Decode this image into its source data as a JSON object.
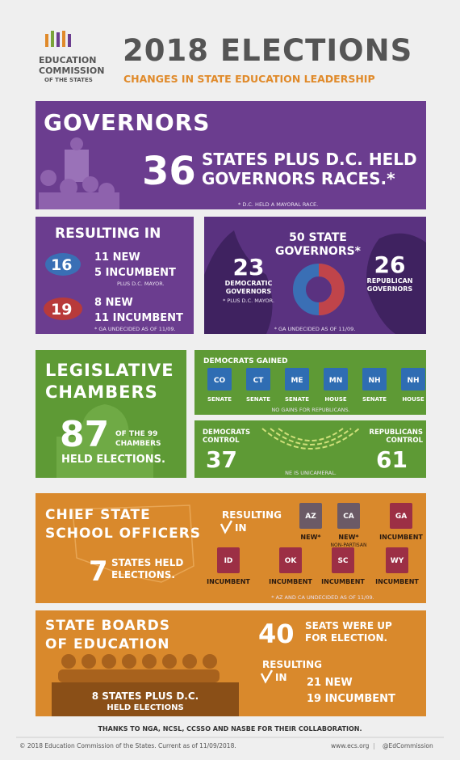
{
  "header": {
    "logo_lines": [
      "EDUCATION",
      "COMMISSION",
      "OF THE STATES"
    ],
    "title": "2018 ELECTIONS",
    "subtitle": "CHANGES IN STATE EDUCATION LEADERSHIP"
  },
  "governors": {
    "heading": "GOVERNORS",
    "count": 36,
    "text_lines": [
      "STATES PLUS D.C. HELD",
      "GOVERNORS RACES.*"
    ],
    "note": "* D.C. HELD A MAYORAL RACE."
  },
  "results": {
    "heading": "RESULTING IN",
    "democrats": {
      "total": 16,
      "lines": [
        "11 NEW",
        "5 INCUMBENT"
      ],
      "note": "PLUS D.C. MAYOR."
    },
    "republicans": {
      "total": 19,
      "lines": [
        "8 NEW",
        "11 INCUMBENT"
      ],
      "note": "* GA UNDECIDED AS OF 11/09."
    }
  },
  "state_governors": {
    "heading_lines": [
      "50 STATE",
      "GOVERNORS*"
    ],
    "democratic": {
      "count": 23,
      "label_lines": [
        "DEMOCRATIC",
        "GOVERNORS"
      ],
      "note": "* PLUS D.C. MAYOR."
    },
    "republican": {
      "count": 26,
      "label_lines": [
        "REPUBLICAN",
        "GOVERNORS"
      ]
    },
    "note": "* GA UNDECIDED AS OF 11/09."
  },
  "legislative": {
    "heading_lines": [
      "LEGISLATIVE",
      "CHAMBERS"
    ],
    "count": 87,
    "text_lines": [
      "OF THE 99",
      "CHAMBERS"
    ],
    "footer": "HELD ELECTIONS."
  },
  "democrats_gained": {
    "heading": "DEMOCRATS GAINED",
    "states": [
      {
        "state": "CO",
        "chamber": "SENATE"
      },
      {
        "state": "CT",
        "chamber": "SENATE"
      },
      {
        "state": "ME",
        "chamber": "SENATE"
      },
      {
        "state": "MN",
        "chamber": "HOUSE"
      },
      {
        "state": "NH",
        "chamber": "SENATE"
      },
      {
        "state": "NH",
        "chamber": "HOUSE"
      }
    ],
    "note": "NO GAINS FOR REPUBLICANS."
  },
  "control": {
    "democrats": {
      "label_lines": [
        "DEMOCRATS",
        "CONTROL"
      ],
      "count": 37
    },
    "republicans": {
      "label_lines": [
        "REPUBLICANS",
        "CONTROL"
      ],
      "count": 61
    },
    "note": "NE IS UNICAMERAL."
  },
  "chief_officers": {
    "heading_lines": [
      "CHIEF STATE",
      "SCHOOL OFFICERS"
    ],
    "count": 7,
    "text_lines": [
      "STATES HELD",
      "ELECTIONS."
    ],
    "resulting_lines": [
      "RESULTING",
      "IN"
    ],
    "states": [
      {
        "state": "AZ",
        "result": "NEW*"
      },
      {
        "state": "CA",
        "result": "NEW*",
        "note": "NON-PARTISAN"
      },
      {
        "state": "GA",
        "result": "INCUMBENT"
      },
      {
        "state": "ID",
        "result": "INCUMBENT"
      },
      {
        "state": "OK",
        "result": "INCUMBENT"
      },
      {
        "state": "SC",
        "result": "INCUMBENT"
      },
      {
        "state": "WY",
        "result": "INCUMBENT"
      }
    ],
    "note": "* AZ AND CA UNDECIDED AS OF 11/09."
  },
  "state_boards": {
    "heading_lines": [
      "STATE BOARDS",
      "OF EDUCATION"
    ],
    "count": 40,
    "text_lines": [
      "SEATS WERE UP",
      "FOR ELECTION."
    ],
    "resulting_lines": [
      "RESULTING",
      "IN"
    ],
    "results": [
      "21 NEW",
      "19 INCUMBENT"
    ],
    "podium_lines": [
      "8 STATES PLUS D.C.",
      "HELD ELECTIONS"
    ]
  },
  "footer": {
    "thanks": "THANKS TO NGA, NCSL, CCSSO AND NASBE FOR THEIR COLLABORATION.",
    "copyright": "© 2018 Education Commission of the States. Current as of 11/09/2018.",
    "website": "www.ecs.org",
    "separator": "|",
    "handle": "@EdCommission"
  }
}
